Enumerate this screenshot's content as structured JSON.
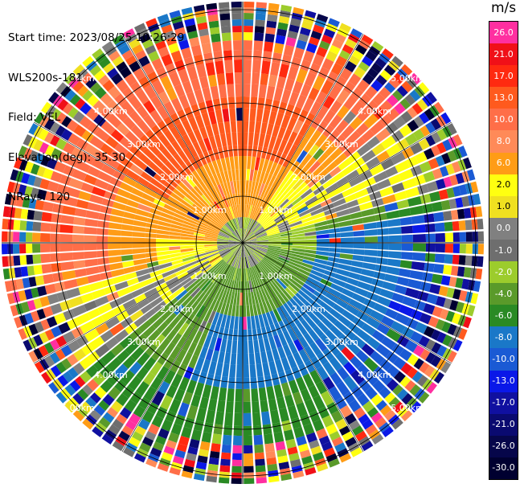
{
  "header": {
    "start_time": "Start time: 2023/08/25 10:26:29",
    "device": "WLS200s-181",
    "field": "Field: VEL",
    "elevation": "Elevation(deg): 35.30",
    "nrays": "NRays: 120"
  },
  "colorbar": {
    "unit": "m/s",
    "levels": [
      {
        "label": "26.0",
        "color": "#ff2fa0"
      },
      {
        "label": "21.0",
        "color": "#f01018"
      },
      {
        "label": "17.0",
        "color": "#ff2a10"
      },
      {
        "label": "13.0",
        "color": "#ff5a1e"
      },
      {
        "label": "10.0",
        "color": "#ff6e48"
      },
      {
        "label": "8.0",
        "color": "#ff8a58"
      },
      {
        "label": "6.0",
        "color": "#ff9c16"
      },
      {
        "label": "2.0",
        "color": "#ffff10"
      },
      {
        "label": "1.0",
        "color": "#f0e020"
      },
      {
        "label": "0.0",
        "color": "#808080"
      },
      {
        "label": "-1.0",
        "color": "#6e6e6e"
      },
      {
        "label": "-2.0",
        "color": "#9ccc2c"
      },
      {
        "label": "-4.0",
        "color": "#5a9a2a"
      },
      {
        "label": "-6.0",
        "color": "#2a8a24"
      },
      {
        "label": "-8.0",
        "color": "#1a78c8"
      },
      {
        "label": "-10.0",
        "color": "#1a5ad4"
      },
      {
        "label": "-13.0",
        "color": "#0a18e8"
      },
      {
        "label": "-17.0",
        "color": "#1010a0"
      },
      {
        "label": "-21.0",
        "color": "#0a0a70"
      },
      {
        "label": "-26.0",
        "color": "#06064a"
      },
      {
        "label": "-30.0",
        "color": "#000030"
      }
    ]
  },
  "range_rings": {
    "labels": [
      "1.00km",
      "2.00km",
      "3.00km",
      "4.00km",
      "5.00km"
    ]
  },
  "plot_colors": {
    "grid_line": "#000000",
    "ray_gap": "#ffffff"
  }
}
